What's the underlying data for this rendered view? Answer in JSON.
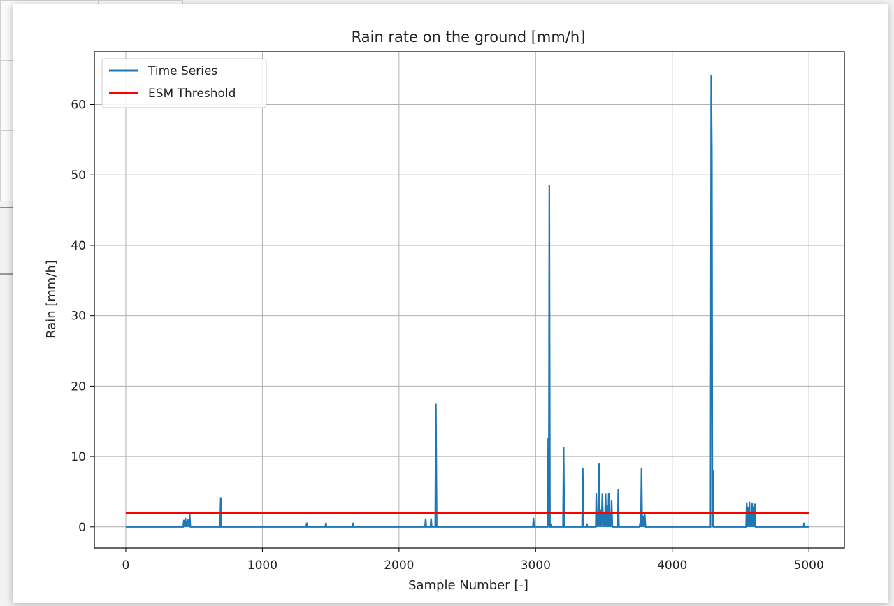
{
  "chart_data": {
    "type": "line",
    "title": "Rain rate on the ground [mm/h]",
    "xlabel": "Sample Number [-]",
    "ylabel": "Rain [mm/h]",
    "xlim": [
      -230,
      5260
    ],
    "ylim": [
      -3.0,
      67.5
    ],
    "xticks": [
      0,
      1000,
      2000,
      3000,
      4000,
      5000
    ],
    "yticks": [
      0,
      10,
      20,
      30,
      40,
      50,
      60
    ],
    "grid": true,
    "legend_position": "top-left",
    "series": [
      {
        "name": "Time Series",
        "color": "#1f77b4",
        "x": [
          0,
          420,
          425,
          432,
          436,
          440,
          445,
          448,
          458,
          463,
          468,
          473,
          480,
          690,
          695,
          700,
          706,
          1320,
          1325,
          1330,
          1460,
          1465,
          1470,
          1660,
          1665,
          1670,
          2190,
          2195,
          2200,
          2205,
          2230,
          2235,
          2240,
          2245,
          2265,
          2270,
          2276,
          2282,
          2980,
          2984,
          2990,
          2994,
          3088,
          3092,
          3096,
          3100,
          3105,
          3110,
          3114,
          3118,
          3130,
          3134,
          3140,
          3200,
          3205,
          3210,
          3215,
          3340,
          3345,
          3350,
          3355,
          3370,
          3374,
          3380,
          3440,
          3444,
          3450,
          3454,
          3458,
          3464,
          3470,
          3476,
          3482,
          3488,
          3495,
          3500,
          3506,
          3512,
          3518,
          3524,
          3530,
          3535,
          3540,
          3545,
          3550,
          3556,
          3562,
          3568,
          3600,
          3605,
          3610,
          3616,
          3760,
          3765,
          3770,
          3775,
          3780,
          3786,
          3792,
          3798,
          3805,
          4280,
          4285,
          4290,
          4294,
          4298,
          4302,
          4306,
          4540,
          4545,
          4550,
          4555,
          4560,
          4565,
          4570,
          4575,
          4580,
          4585,
          4590,
          4595,
          4600,
          4605,
          4610,
          4615,
          4620,
          4960,
          4965,
          4970,
          4975,
          5000
        ],
        "y": [
          0,
          0,
          1.0,
          0,
          1.3,
          0,
          0.8,
          0,
          1.1,
          0,
          1.8,
          0,
          0,
          0,
          4.2,
          0,
          0,
          0,
          0.6,
          0,
          0,
          0.6,
          0,
          0,
          0.6,
          0,
          0,
          1.2,
          0,
          0,
          0,
          1.2,
          0,
          0,
          0,
          17.5,
          0,
          0,
          0,
          1.3,
          0,
          0,
          0,
          12.6,
          0,
          48.6,
          0,
          0,
          0.5,
          0,
          0,
          0,
          0,
          0,
          11.4,
          0,
          0,
          0,
          8.4,
          0,
          0,
          0,
          0.5,
          0,
          0,
          4.8,
          0,
          2.2,
          0,
          9.0,
          0,
          2.5,
          0,
          4.7,
          0,
          1.8,
          0,
          4.7,
          0,
          3.0,
          0,
          4.8,
          0,
          2.1,
          0,
          3.8,
          0,
          0,
          0,
          5.4,
          0,
          0,
          0,
          0.6,
          0,
          8.4,
          0,
          1.6,
          0,
          1.9,
          0,
          0,
          64.2,
          53.0,
          0,
          8.0,
          0,
          0,
          0,
          3.5,
          0,
          2.8,
          0,
          3.6,
          0,
          2.0,
          0,
          3.4,
          0,
          2.8,
          0,
          3.3,
          0,
          0,
          0,
          0,
          0.6,
          0,
          0,
          0
        ]
      },
      {
        "name": "ESM Threshold",
        "color": "#ff0000",
        "x": [
          0,
          5000
        ],
        "y": [
          2.0,
          2.0
        ]
      }
    ]
  }
}
